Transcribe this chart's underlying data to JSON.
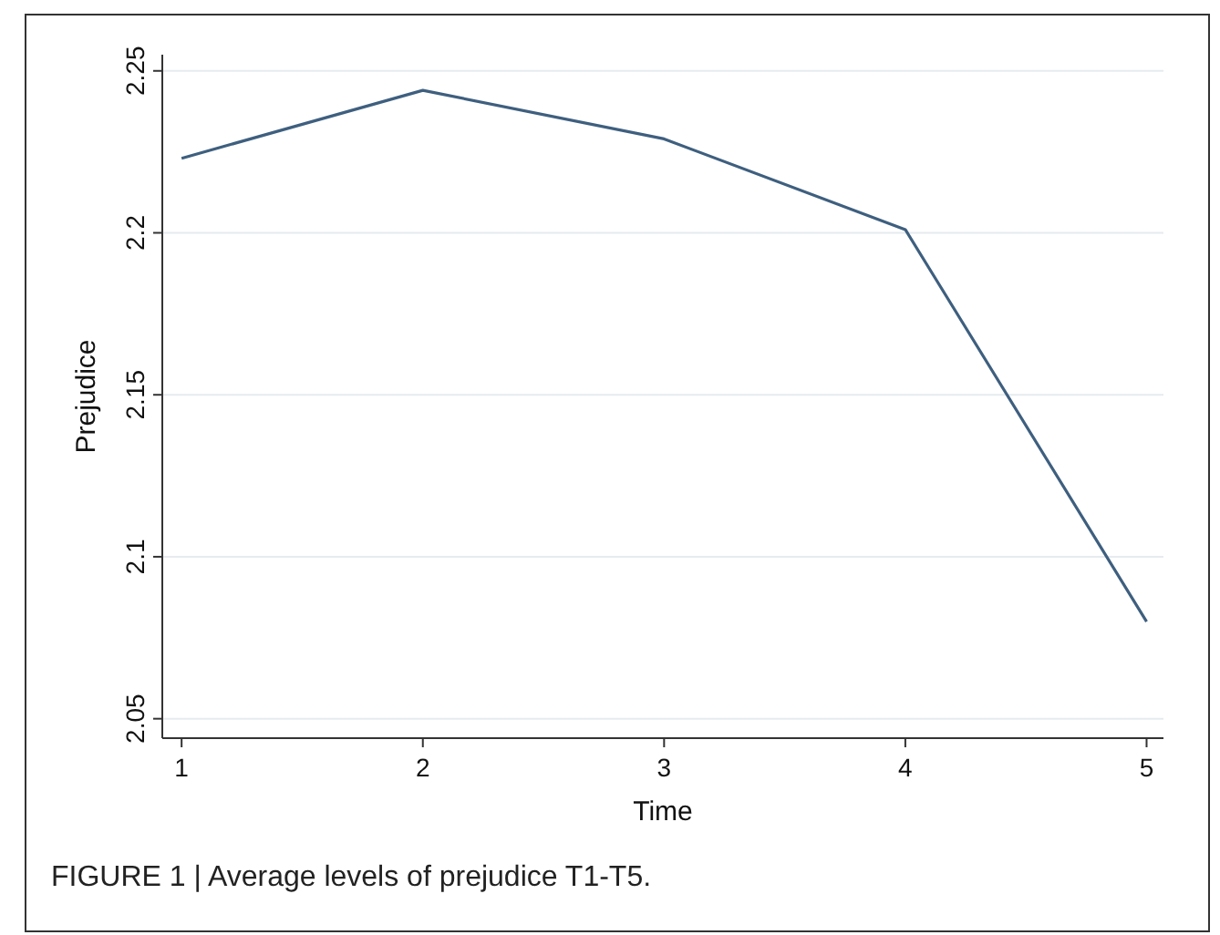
{
  "chart_data": {
    "type": "line",
    "xlabel": "Time",
    "ylabel": "Prejudice",
    "x": [
      1,
      2,
      3,
      4,
      5
    ],
    "series": [
      {
        "color": "#3e5f7f",
        "values": [
          2.223,
          2.244,
          2.229,
          2.201,
          2.08
        ]
      }
    ],
    "xlim": [
      0.92,
      5.07
    ],
    "xticks": [
      1,
      2,
      3,
      4,
      5
    ],
    "ylim": [
      2.044,
      2.255
    ],
    "yticks": [
      2.05,
      2.1,
      2.15,
      2.2,
      2.25
    ],
    "grid": "y",
    "marker": "none",
    "line_style": "solid",
    "annotations": [
      "FIGURE 1 | Average levels of prejudice T1-T5."
    ]
  }
}
